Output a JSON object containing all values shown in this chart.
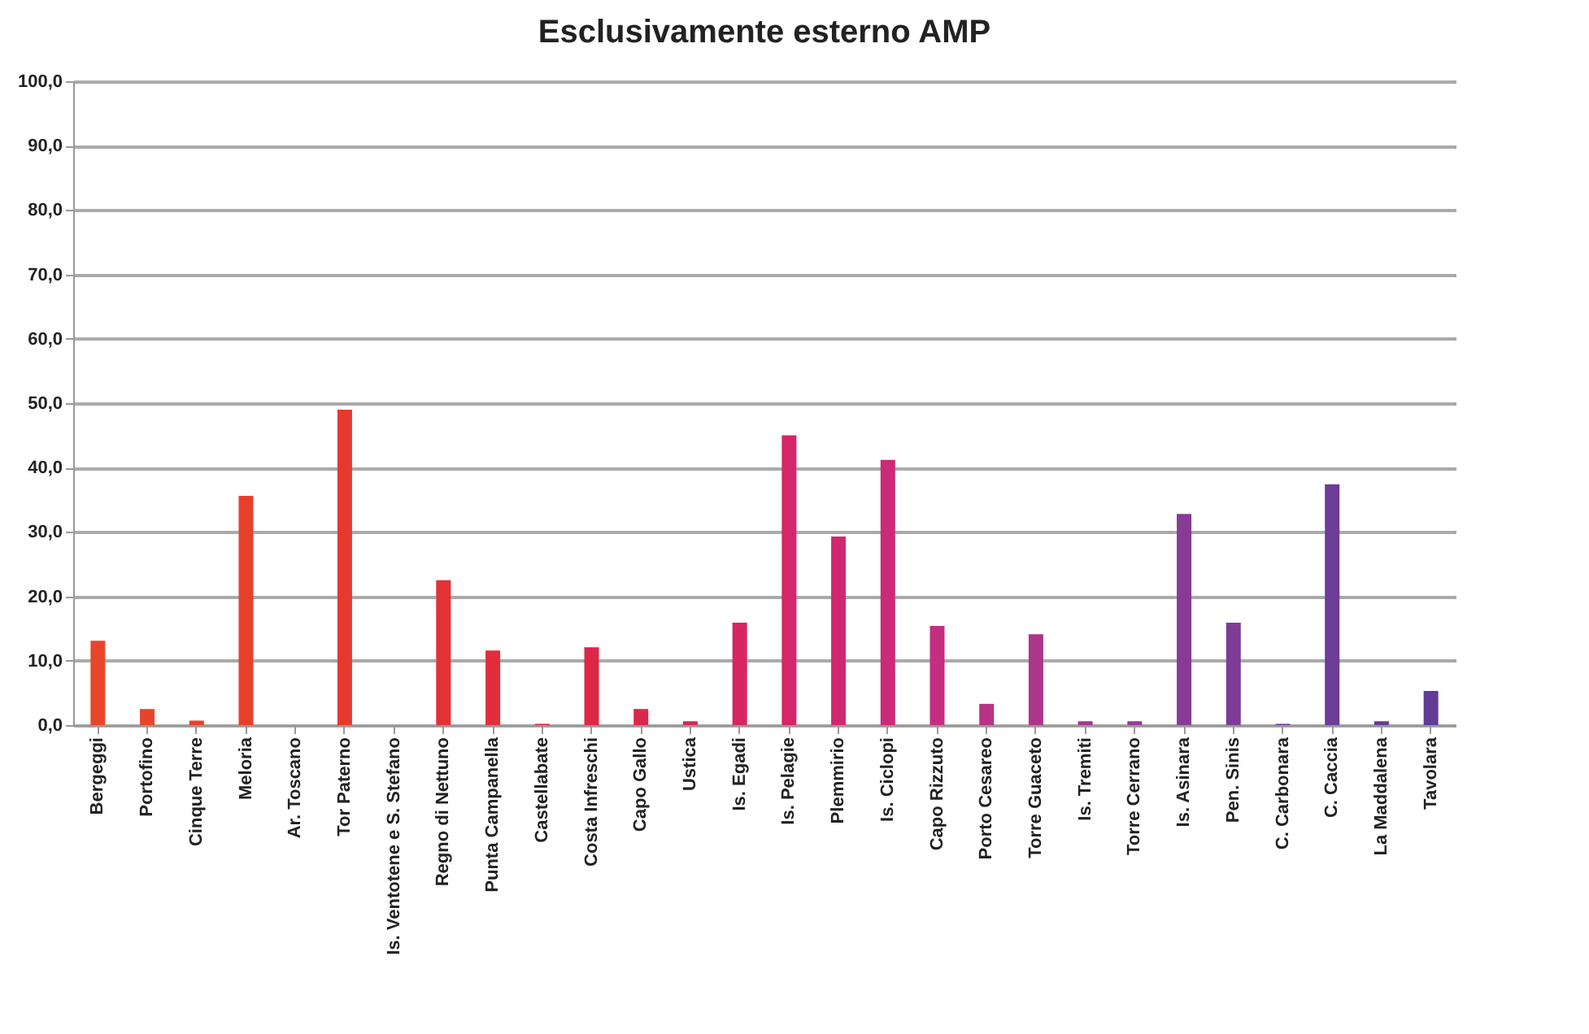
{
  "chart_data": {
    "type": "bar",
    "title": "Esclusivamente esterno AMP",
    "categories": [
      "Bergeggi",
      "Portofino",
      "Cinque Terre",
      "Meloria",
      "Ar. Toscano",
      "Tor Paterno",
      "Is. Ventotene e S. Stefano",
      "Regno di Nettuno",
      "Punta Campanella",
      "Castellabate",
      "Costa Infreschi",
      "Capo Gallo",
      "Ustica",
      "Is. Egadi",
      "Is. Pelagie",
      "Plemmirio",
      "Is. Ciclopi",
      "Capo Rizzuto",
      "Porto Cesareo",
      "Torre Guaceto",
      "Is. Tremiti",
      "Torre Cerrano",
      "Is. Asinara",
      "Pen. Sinis",
      "C. Carbonara",
      "C. Caccia",
      "La Maddalena",
      "Tavolara"
    ],
    "values": [
      13.1,
      2.5,
      0.7,
      35.6,
      0,
      49,
      0,
      22.5,
      11.6,
      0.2,
      12.1,
      2.5,
      0.6,
      15.9,
      45,
      29.3,
      41.2,
      15.4,
      3.3,
      14.1,
      0.6,
      0.6,
      32.8,
      15.9,
      0.2,
      37.4,
      0.6,
      5.3
    ],
    "colors": [
      "#e8462a",
      "#e8442b",
      "#e7422c",
      "#e6402d",
      "#e53e2f",
      "#e53a30",
      "#e43633",
      "#e23236",
      "#e02e3a",
      "#de2b40",
      "#dc2846",
      "#da274e",
      "#d82656",
      "#d6255f",
      "#d42668",
      "#d02870",
      "#cc2a78",
      "#c42e80",
      "#b93286",
      "#ad358b",
      "#a0388f",
      "#943a92",
      "#883b94",
      "#7e3c96",
      "#743c97",
      "#6c3c97",
      "#663c97",
      "#603c96"
    ],
    "ylim": [
      0,
      100
    ],
    "yticks": [
      {
        "value": 0,
        "label": "0,0"
      },
      {
        "value": 10,
        "label": "10,0"
      },
      {
        "value": 20,
        "label": "20,0"
      },
      {
        "value": 30,
        "label": "30,0"
      },
      {
        "value": 40,
        "label": "40,0"
      },
      {
        "value": 50,
        "label": "50,0"
      },
      {
        "value": 60,
        "label": "60,0"
      },
      {
        "value": 70,
        "label": "70,0"
      },
      {
        "value": 80,
        "label": "80,0"
      },
      {
        "value": 90,
        "label": "90,0"
      },
      {
        "value": 100,
        "label": "100,0"
      }
    ],
    "grid": "y"
  }
}
